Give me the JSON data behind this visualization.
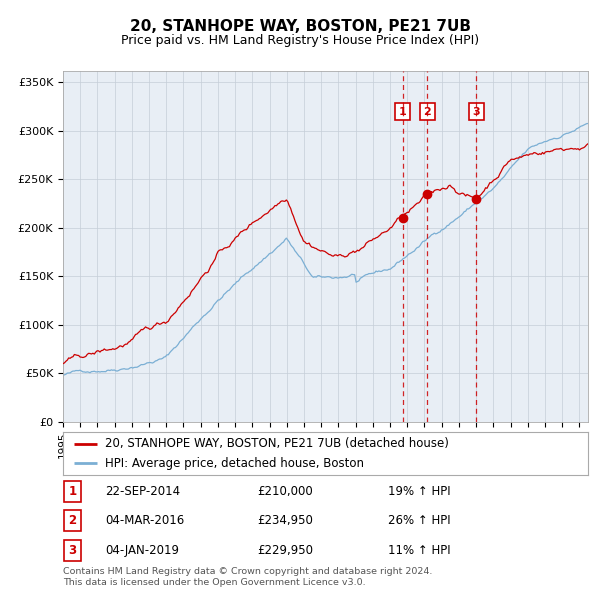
{
  "title": "20, STANHOPE WAY, BOSTON, PE21 7UB",
  "subtitle": "Price paid vs. HM Land Registry's House Price Index (HPI)",
  "legend_line1": "20, STANHOPE WAY, BOSTON, PE21 7UB (detached house)",
  "legend_line2": "HPI: Average price, detached house, Boston",
  "sale_points": [
    {
      "label": "1",
      "date_str": "22-SEP-2014",
      "price": 210000,
      "price_str": "£210,000",
      "pct": "19% ↑ HPI"
    },
    {
      "label": "2",
      "date_str": "04-MAR-2016",
      "price": 234950,
      "price_str": "£234,950",
      "pct": "26% ↑ HPI"
    },
    {
      "label": "3",
      "date_str": "04-JAN-2019",
      "price": 229950,
      "price_str": "£229,950",
      "pct": "11% ↑ HPI"
    }
  ],
  "sale_dates_decimal": [
    2014.73,
    2016.17,
    2019.01
  ],
  "sale_prices": [
    210000,
    234950,
    229950
  ],
  "ylabel_ticks": [
    "£0",
    "£50K",
    "£100K",
    "£150K",
    "£200K",
    "£250K",
    "£300K",
    "£350K"
  ],
  "ytick_values": [
    0,
    50000,
    100000,
    150000,
    200000,
    250000,
    300000,
    350000
  ],
  "xstart": 1995.0,
  "xend": 2025.5,
  "ymin": 0,
  "ymax": 362000,
  "plot_bg_color": "#e8eef5",
  "red_line_color": "#cc0000",
  "blue_line_color": "#7bafd4",
  "vline_color": "#cc0000",
  "footer_text": "Contains HM Land Registry data © Crown copyright and database right 2024.\nThis data is licensed under the Open Government Licence v3.0."
}
